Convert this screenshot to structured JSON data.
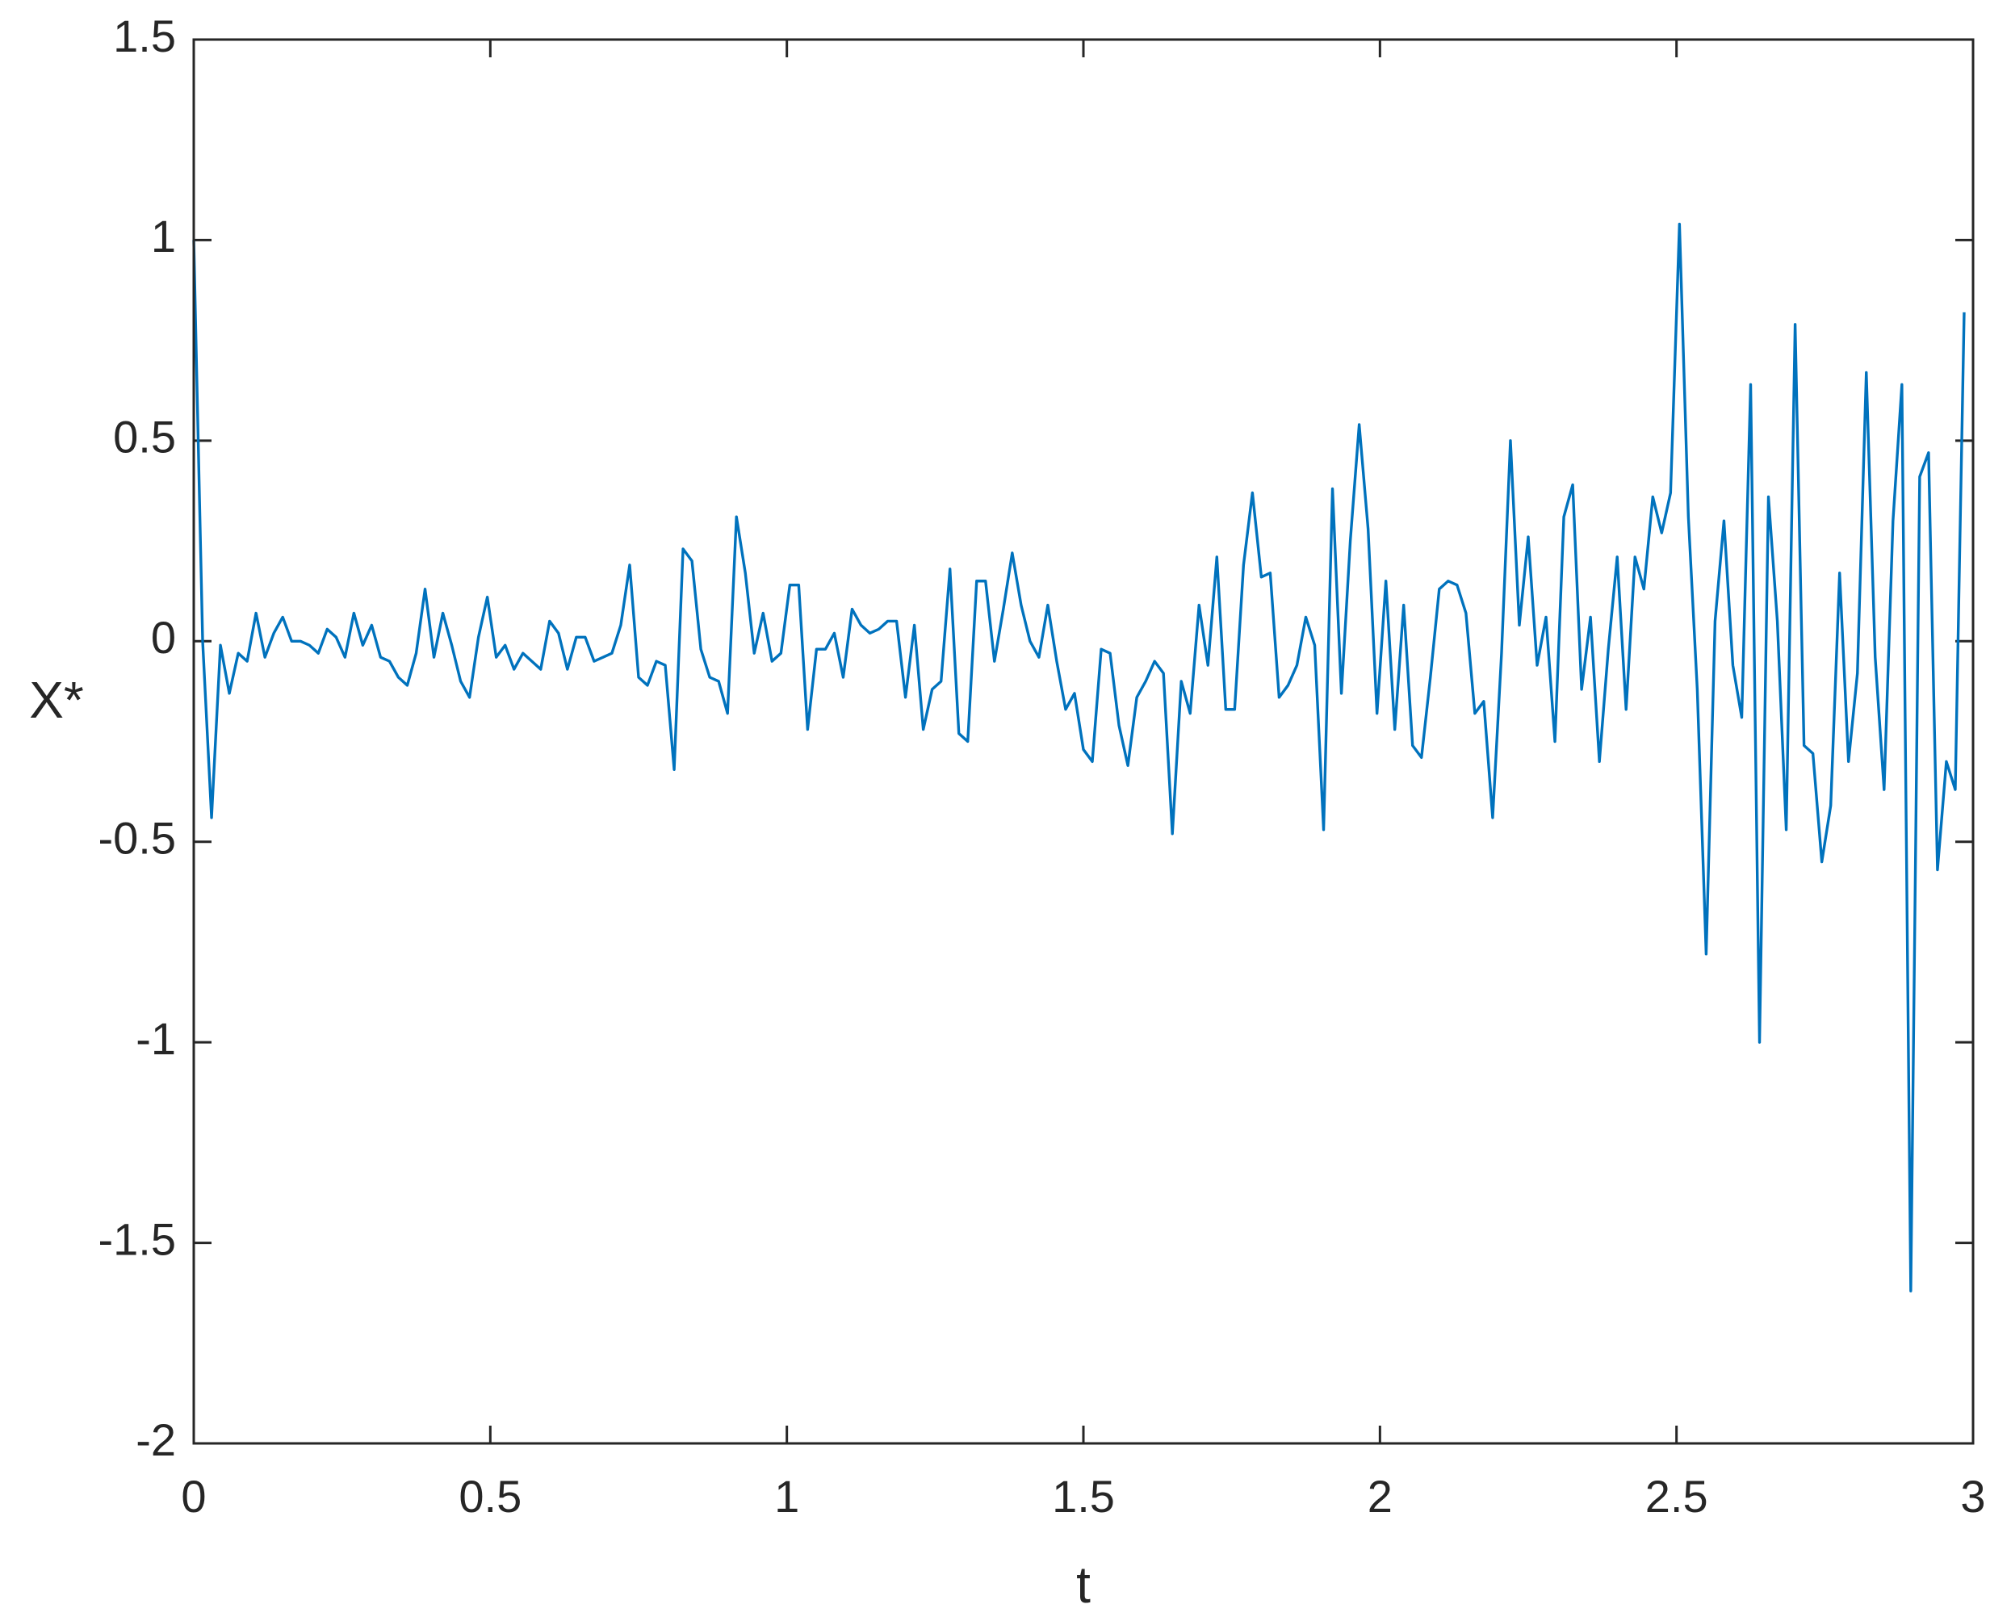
{
  "chart_data": {
    "type": "line",
    "xlabel": "t",
    "ylabel": "X*",
    "xlim": [
      0,
      3
    ],
    "ylim": [
      -2,
      1.5
    ],
    "xticks": [
      0,
      0.5,
      1,
      1.5,
      2,
      2.5,
      3
    ],
    "yticks": [
      -2,
      -1.5,
      -1,
      -0.5,
      0,
      0.5,
      1,
      1.5
    ],
    "grid": false,
    "box": true,
    "x": [
      0,
      0.015,
      0.03,
      0.045,
      0.06,
      0.075,
      0.09,
      0.105,
      0.12,
      0.135,
      0.15,
      0.165,
      0.18,
      0.195,
      0.21,
      0.225,
      0.24,
      0.255,
      0.27,
      0.285,
      0.3,
      0.315,
      0.33,
      0.345,
      0.36,
      0.375,
      0.39,
      0.405,
      0.42,
      0.435,
      0.45,
      0.465,
      0.48,
      0.495,
      0.51,
      0.525,
      0.54,
      0.555,
      0.57,
      0.585,
      0.6,
      0.615,
      0.63,
      0.645,
      0.66,
      0.675,
      0.69,
      0.705,
      0.72,
      0.735,
      0.75,
      0.765,
      0.78,
      0.795,
      0.81,
      0.825,
      0.84,
      0.855,
      0.87,
      0.885,
      0.9,
      0.915,
      0.93,
      0.945,
      0.96,
      0.975,
      0.99,
      1.005,
      1.02,
      1.035,
      1.05,
      1.065,
      1.08,
      1.095,
      1.11,
      1.125,
      1.14,
      1.155,
      1.17,
      1.185,
      1.2,
      1.215,
      1.23,
      1.245,
      1.26,
      1.275,
      1.29,
      1.305,
      1.32,
      1.335,
      1.35,
      1.365,
      1.38,
      1.395,
      1.41,
      1.425,
      1.44,
      1.455,
      1.47,
      1.485,
      1.5,
      1.515,
      1.53,
      1.545,
      1.56,
      1.575,
      1.59,
      1.605,
      1.62,
      1.635,
      1.65,
      1.665,
      1.68,
      1.695,
      1.71,
      1.725,
      1.74,
      1.755,
      1.77,
      1.785,
      1.8,
      1.815,
      1.83,
      1.845,
      1.86,
      1.875,
      1.89,
      1.905,
      1.92,
      1.935,
      1.95,
      1.965,
      1.98,
      1.995,
      2.01,
      2.025,
      2.04,
      2.055,
      2.07,
      2.085,
      2.1,
      2.115,
      2.13,
      2.145,
      2.16,
      2.175,
      2.19,
      2.205,
      2.22,
      2.235,
      2.25,
      2.265,
      2.28,
      2.295,
      2.31,
      2.325,
      2.34,
      2.355,
      2.37,
      2.385,
      2.4,
      2.415,
      2.43,
      2.445,
      2.46,
      2.475,
      2.49,
      2.505,
      2.52,
      2.535,
      2.55,
      2.565,
      2.58,
      2.595,
      2.61,
      2.625,
      2.64,
      2.655,
      2.67,
      2.685,
      2.7,
      2.715,
      2.73,
      2.745,
      2.76,
      2.775,
      2.79,
      2.805,
      2.82,
      2.835,
      2.85,
      2.865,
      2.88,
      2.895,
      2.91,
      2.925,
      2.94,
      2.955,
      2.97,
      2.985
    ],
    "series": [
      {
        "color": "#0072bd",
        "values": [
          1.0,
          0.0,
          -0.44,
          -0.01,
          -0.13,
          -0.03,
          -0.05,
          0.07,
          -0.04,
          0.02,
          0.06,
          0.0,
          0.0,
          -0.01,
          -0.03,
          0.03,
          0.01,
          -0.04,
          0.07,
          -0.01,
          0.04,
          -0.04,
          -0.05,
          -0.09,
          -0.11,
          -0.03,
          0.13,
          -0.04,
          0.07,
          -0.01,
          -0.1,
          -0.14,
          0.01,
          0.11,
          -0.04,
          -0.01,
          -0.07,
          -0.03,
          -0.05,
          -0.07,
          0.05,
          0.02,
          -0.07,
          0.01,
          0.01,
          -0.05,
          -0.04,
          -0.03,
          0.04,
          0.19,
          -0.09,
          -0.11,
          -0.05,
          -0.06,
          -0.32,
          0.23,
          0.2,
          -0.02,
          -0.09,
          -0.1,
          -0.18,
          0.31,
          0.17,
          -0.03,
          0.07,
          -0.05,
          -0.03,
          0.14,
          0.14,
          -0.22,
          -0.02,
          -0.02,
          0.02,
          -0.09,
          0.08,
          0.04,
          0.02,
          0.03,
          0.05,
          0.05,
          -0.14,
          0.04,
          -0.22,
          -0.12,
          -0.1,
          0.18,
          -0.23,
          -0.25,
          0.15,
          0.15,
          -0.05,
          0.08,
          0.22,
          0.09,
          0.0,
          -0.04,
          0.09,
          -0.05,
          -0.17,
          -0.13,
          -0.27,
          -0.3,
          -0.02,
          -0.03,
          -0.21,
          -0.31,
          -0.14,
          -0.1,
          -0.05,
          -0.08,
          -0.48,
          -0.1,
          -0.18,
          0.09,
          -0.06,
          0.21,
          -0.17,
          -0.17,
          0.19,
          0.37,
          0.16,
          0.17,
          -0.14,
          -0.11,
          -0.06,
          0.06,
          -0.01,
          -0.47,
          0.38,
          -0.13,
          0.25,
          0.54,
          0.28,
          -0.18,
          0.15,
          -0.22,
          0.09,
          -0.26,
          -0.29,
          -0.09,
          0.13,
          0.15,
          0.14,
          0.07,
          -0.18,
          -0.15,
          -0.44,
          -0.03,
          0.5,
          0.04,
          0.26,
          -0.06,
          0.06,
          -0.25,
          0.31,
          0.39,
          -0.12,
          0.06,
          -0.3,
          -0.02,
          0.21,
          -0.17,
          0.21,
          0.13,
          0.36,
          0.27,
          0.37,
          1.04,
          0.31,
          -0.12,
          -0.78,
          0.05,
          0.3,
          -0.06,
          -0.19,
          0.64,
          -1.0,
          0.36,
          0.05,
          -0.47,
          0.79,
          -0.26,
          -0.28,
          -0.55,
          -0.41,
          0.17,
          -0.3,
          -0.08,
          0.67,
          -0.04,
          -0.37,
          0.3,
          0.64,
          -1.62,
          0.41,
          0.47,
          -0.57,
          -0.3,
          -0.37,
          0.82
        ]
      }
    ]
  }
}
